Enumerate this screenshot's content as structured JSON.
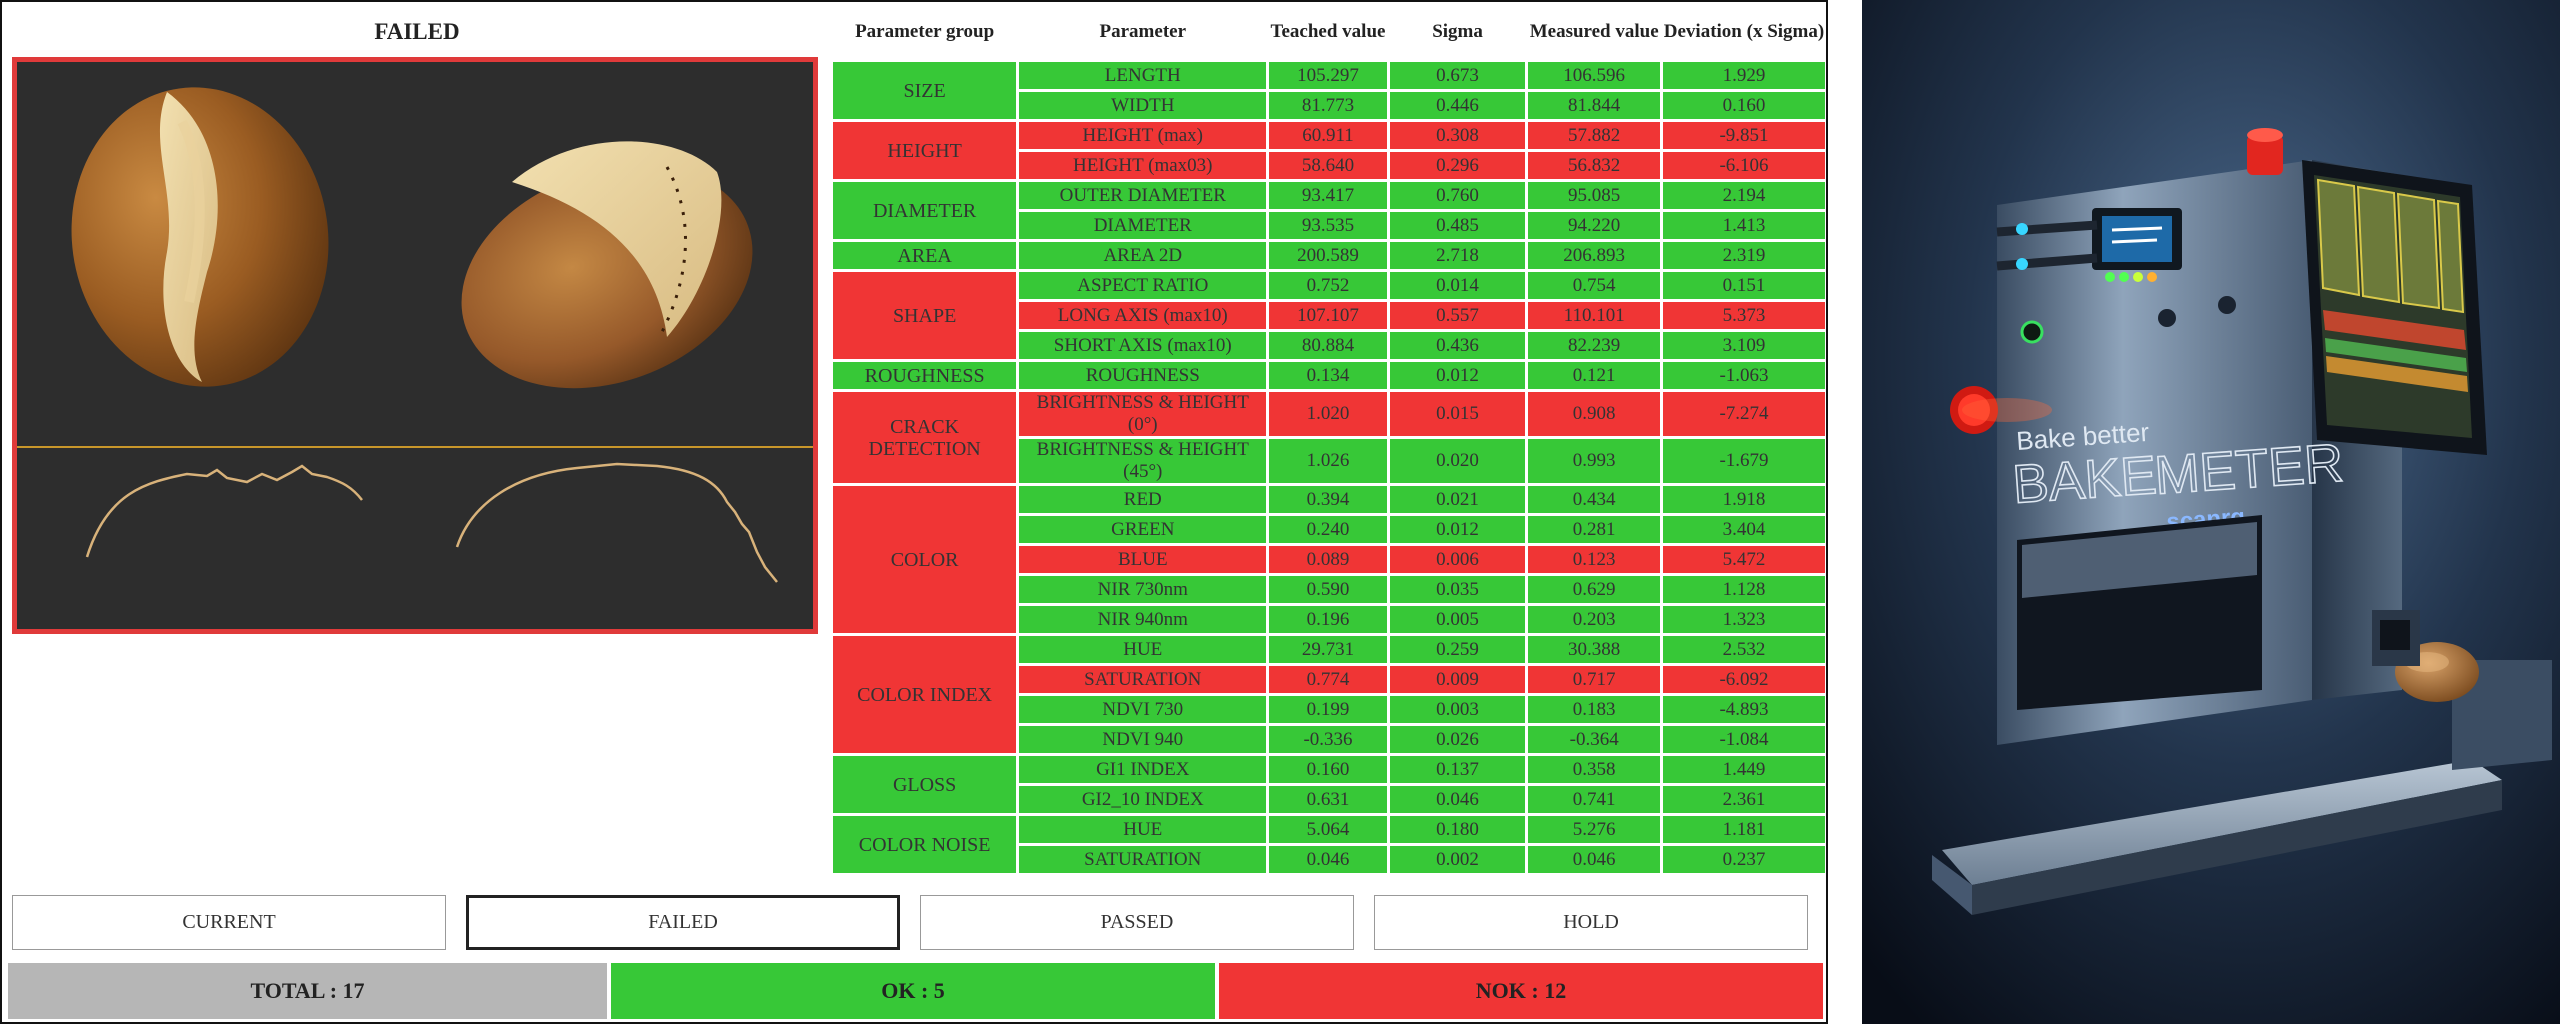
{
  "panel": {
    "title": "FAILED"
  },
  "table": {
    "headers": {
      "group": "Parameter group",
      "parameter": "Parameter",
      "teached": "Teached value",
      "sigma": "Sigma",
      "measured": "Measured value",
      "deviation": "Deviation (x Sigma)"
    },
    "groups": [
      {
        "name": "SIZE",
        "status": "ok",
        "rows": [
          {
            "param": "LENGTH",
            "teached": "105.297",
            "sigma": "0.673",
            "measured": "106.596",
            "deviation": "1.929",
            "status": "ok"
          },
          {
            "param": "WIDTH",
            "teached": "81.773",
            "sigma": "0.446",
            "measured": "81.844",
            "deviation": "0.160",
            "status": "ok"
          }
        ]
      },
      {
        "name": "HEIGHT",
        "status": "nok",
        "rows": [
          {
            "param": "HEIGHT (max)",
            "teached": "60.911",
            "sigma": "0.308",
            "measured": "57.882",
            "deviation": "-9.851",
            "status": "nok"
          },
          {
            "param": "HEIGHT (max03)",
            "teached": "58.640",
            "sigma": "0.296",
            "measured": "56.832",
            "deviation": "-6.106",
            "status": "nok"
          }
        ]
      },
      {
        "name": "DIAMETER",
        "status": "ok",
        "rows": [
          {
            "param": "OUTER DIAMETER",
            "teached": "93.417",
            "sigma": "0.760",
            "measured": "95.085",
            "deviation": "2.194",
            "status": "ok"
          },
          {
            "param": "DIAMETER",
            "teached": "93.535",
            "sigma": "0.485",
            "measured": "94.220",
            "deviation": "1.413",
            "status": "ok"
          }
        ]
      },
      {
        "name": "AREA",
        "status": "ok",
        "rows": [
          {
            "param": "AREA 2D",
            "teached": "200.589",
            "sigma": "2.718",
            "measured": "206.893",
            "deviation": "2.319",
            "status": "ok"
          }
        ]
      },
      {
        "name": "SHAPE",
        "status": "nok",
        "rows": [
          {
            "param": "ASPECT RATIO",
            "teached": "0.752",
            "sigma": "0.014",
            "measured": "0.754",
            "deviation": "0.151",
            "status": "ok"
          },
          {
            "param": "LONG AXIS (max10)",
            "teached": "107.107",
            "sigma": "0.557",
            "measured": "110.101",
            "deviation": "5.373",
            "status": "nok"
          },
          {
            "param": "SHORT AXIS (max10)",
            "teached": "80.884",
            "sigma": "0.436",
            "measured": "82.239",
            "deviation": "3.109",
            "status": "ok"
          }
        ]
      },
      {
        "name": "ROUGHNESS",
        "status": "ok",
        "rows": [
          {
            "param": "ROUGHNESS",
            "teached": "0.134",
            "sigma": "0.012",
            "measured": "0.121",
            "deviation": "-1.063",
            "status": "ok"
          }
        ]
      },
      {
        "name": "CRACK DETECTION",
        "status": "nok",
        "rows": [
          {
            "param": "BRIGHTNESS & HEIGHT (0°)",
            "teached": "1.020",
            "sigma": "0.015",
            "measured": "0.908",
            "deviation": "-7.274",
            "status": "nok",
            "tall": true
          },
          {
            "param": "BRIGHTNESS & HEIGHT (45°)",
            "teached": "1.026",
            "sigma": "0.020",
            "measured": "0.993",
            "deviation": "-1.679",
            "status": "ok",
            "tall": true
          }
        ]
      },
      {
        "name": "COLOR",
        "status": "nok",
        "rows": [
          {
            "param": "RED",
            "teached": "0.394",
            "sigma": "0.021",
            "measured": "0.434",
            "deviation": "1.918",
            "status": "ok"
          },
          {
            "param": "GREEN",
            "teached": "0.240",
            "sigma": "0.012",
            "measured": "0.281",
            "deviation": "3.404",
            "status": "ok"
          },
          {
            "param": "BLUE",
            "teached": "0.089",
            "sigma": "0.006",
            "measured": "0.123",
            "deviation": "5.472",
            "status": "nok"
          },
          {
            "param": "NIR 730nm",
            "teached": "0.590",
            "sigma": "0.035",
            "measured": "0.629",
            "deviation": "1.128",
            "status": "ok"
          },
          {
            "param": "NIR 940nm",
            "teached": "0.196",
            "sigma": "0.005",
            "measured": "0.203",
            "deviation": "1.323",
            "status": "ok"
          }
        ]
      },
      {
        "name": "COLOR INDEX",
        "status": "nok",
        "rows": [
          {
            "param": "HUE",
            "teached": "29.731",
            "sigma": "0.259",
            "measured": "30.388",
            "deviation": "2.532",
            "status": "ok"
          },
          {
            "param": "SATURATION",
            "teached": "0.774",
            "sigma": "0.009",
            "measured": "0.717",
            "deviation": "-6.092",
            "status": "nok"
          },
          {
            "param": "NDVI 730",
            "teached": "0.199",
            "sigma": "0.003",
            "measured": "0.183",
            "deviation": "-4.893",
            "status": "ok"
          },
          {
            "param": "NDVI 940",
            "teached": "-0.336",
            "sigma": "0.026",
            "measured": "-0.364",
            "deviation": "-1.084",
            "status": "ok"
          }
        ]
      },
      {
        "name": "GLOSS",
        "status": "ok",
        "rows": [
          {
            "param": "GI1 INDEX",
            "teached": "0.160",
            "sigma": "0.137",
            "measured": "0.358",
            "deviation": "1.449",
            "status": "ok"
          },
          {
            "param": "GI2_10 INDEX",
            "teached": "0.631",
            "sigma": "0.046",
            "measured": "0.741",
            "deviation": "2.361",
            "status": "ok"
          }
        ]
      },
      {
        "name": "COLOR NOISE",
        "status": "ok",
        "rows": [
          {
            "param": "HUE",
            "teached": "5.064",
            "sigma": "0.180",
            "measured": "5.276",
            "deviation": "1.181",
            "status": "ok"
          },
          {
            "param": "SATURATION",
            "teached": "0.046",
            "sigma": "0.002",
            "measured": "0.046",
            "deviation": "0.237",
            "status": "ok"
          }
        ]
      }
    ]
  },
  "filters": [
    {
      "label": "CURRENT",
      "active": false
    },
    {
      "label": "FAILED",
      "active": true
    },
    {
      "label": "PASSED",
      "active": false
    },
    {
      "label": "HOLD",
      "active": false
    }
  ],
  "summary": {
    "total": "TOTAL : 17",
    "ok": "OK : 5",
    "nok": "NOK : 12"
  },
  "colors": {
    "ok": "#37c837",
    "nok": "#f03535",
    "neutral": "#b6b6b6",
    "frame": "#e03a3a",
    "scan_bg": "#2d2d2d"
  },
  "device": {
    "slogan": "Bake better",
    "brand_left": "BAKE",
    "brand_right": "METER",
    "maker": "scanrg"
  }
}
